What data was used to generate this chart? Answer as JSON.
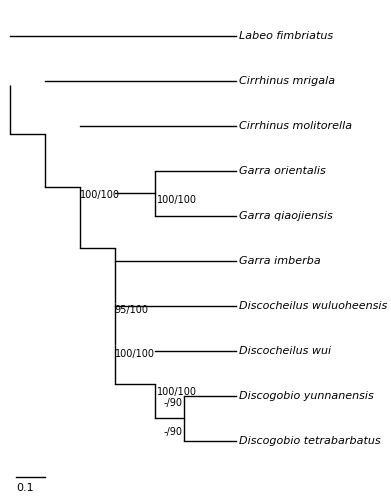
{
  "taxa": [
    "Labeo fimbriatus",
    "Cirrhinus mrigala",
    "Cirrhinus molitorella",
    "Garra orientalis",
    "Garra qiaojiensis",
    "Garra imberba",
    "Discocheilus wuluoheensis",
    "Discocheilus wui",
    "Discogobio yunnanensis",
    "Discogobio tetrabarbatus"
  ],
  "tip_y": [
    9.5,
    8.5,
    7.5,
    6.5,
    5.5,
    4.5,
    3.5,
    2.5,
    1.5,
    0.5
  ],
  "node_labels": {
    "n2": "100/100",
    "n4": "100/100",
    "n5": "95/100",
    "n6": "100/100",
    "n7": "100/100",
    "n8a": "-/90",
    "n8b": "-/90"
  },
  "scale_bar_label": "0.1",
  "background_color": "#ffffff",
  "line_color": "#000000",
  "text_color": "#000000",
  "font_size": 8.0,
  "label_font_size": 7.0
}
